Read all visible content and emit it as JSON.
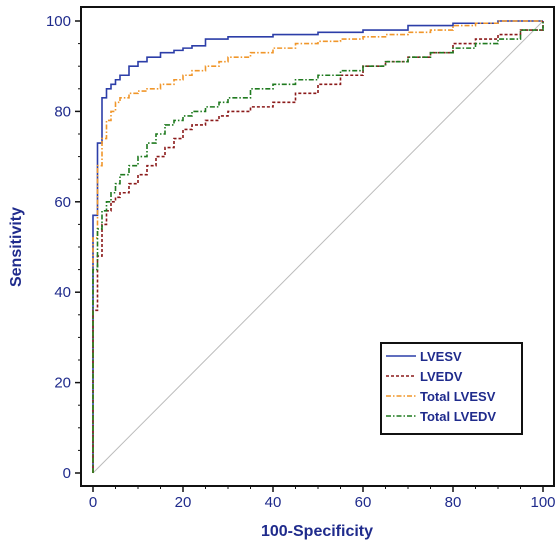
{
  "chart_data": {
    "type": "line",
    "xlabel": "100-Specificity",
    "ylabel": "Sensitivity",
    "xlim": [
      0,
      100
    ],
    "ylim": [
      0,
      100
    ],
    "xticks": [
      0,
      20,
      40,
      60,
      80,
      100
    ],
    "yticks": [
      0,
      20,
      40,
      60,
      80,
      100
    ],
    "grid": false,
    "legend_position": "lower-right",
    "reference_line": {
      "from": [
        0,
        0
      ],
      "to": [
        100,
        100
      ],
      "color": "#bbbbbb"
    },
    "series": [
      {
        "name": "LVESV",
        "color": "#2c3ea8",
        "style": "solid",
        "x": [
          0,
          0,
          1,
          1,
          2,
          2,
          3,
          4,
          5,
          6,
          8,
          10,
          12,
          15,
          18,
          20,
          22,
          25,
          30,
          40,
          50,
          60,
          70,
          80,
          90,
          95,
          100
        ],
        "y": [
          0,
          57,
          62,
          73,
          77,
          83,
          85,
          86,
          87,
          88,
          90,
          91,
          92,
          93,
          93.5,
          94,
          94.5,
          96,
          96.5,
          97,
          97.5,
          98,
          99,
          99.5,
          100,
          100,
          100
        ]
      },
      {
        "name": "LVEDV",
        "color": "#8b1a1a",
        "style": "dashed",
        "x": [
          0,
          0,
          1,
          1,
          2,
          3,
          4,
          5,
          6,
          8,
          10,
          12,
          14,
          16,
          18,
          20,
          22,
          25,
          28,
          30,
          35,
          40,
          45,
          50,
          55,
          60,
          65,
          70,
          75,
          80,
          85,
          90,
          95,
          100
        ],
        "y": [
          0,
          36,
          40,
          48,
          55,
          58,
          60,
          61,
          62,
          64,
          66,
          68,
          70,
          72,
          74,
          76,
          77,
          78,
          79,
          80,
          81,
          82,
          84,
          86,
          88,
          90,
          91,
          92,
          93,
          95,
          96,
          97,
          98,
          100
        ]
      },
      {
        "name": "Total LVESV",
        "color": "#f0962a",
        "style": "dash-dot",
        "x": [
          0,
          0,
          1,
          1,
          2,
          3,
          4,
          5,
          6,
          8,
          10,
          12,
          15,
          18,
          20,
          22,
          25,
          28,
          30,
          35,
          40,
          45,
          50,
          55,
          60,
          65,
          70,
          75,
          80,
          85,
          90,
          95,
          100
        ],
        "y": [
          0,
          52,
          60,
          68,
          74,
          78,
          80,
          82,
          83,
          84,
          84.5,
          85,
          86,
          87,
          88,
          89,
          90,
          91,
          92,
          93,
          94,
          95,
          95.5,
          96,
          96.5,
          97,
          97.5,
          98,
          99,
          99.5,
          100,
          100,
          100
        ]
      },
      {
        "name": "Total LVEDV",
        "color": "#1f7a1f",
        "style": "dash-dot",
        "x": [
          0,
          0,
          1,
          1,
          2,
          3,
          4,
          5,
          6,
          8,
          10,
          12,
          14,
          16,
          18,
          20,
          22,
          25,
          28,
          30,
          35,
          40,
          45,
          50,
          55,
          60,
          65,
          70,
          75,
          80,
          85,
          90,
          95,
          100
        ],
        "y": [
          0,
          45,
          50,
          54,
          58,
          60,
          62,
          64,
          66,
          68,
          70,
          73,
          75,
          77,
          78,
          79,
          80,
          81,
          82,
          83,
          85,
          86,
          87,
          88,
          89,
          90,
          91,
          92,
          93,
          94,
          95,
          96,
          98,
          100
        ]
      }
    ]
  }
}
